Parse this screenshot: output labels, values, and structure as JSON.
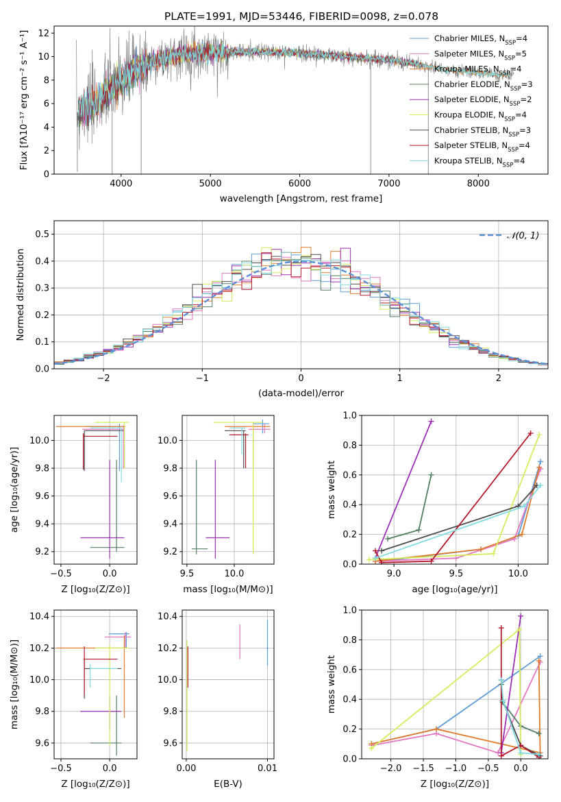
{
  "figure_title": "PLATE=1991, MJD=53446, FIBERID=0098, z=0.078",
  "colors": {
    "chabrier_miles": "#5b9bd5",
    "salpeter_miles": "#e377c2",
    "kroupa_miles": "#e07b2a",
    "chabrier_elodie": "#4f7f5f",
    "salpeter_elodie": "#9b2fb3",
    "kroupa_elodie": "#d4ec5a",
    "chabrier_stelib": "#4a4a4a",
    "salpeter_stelib": "#b2182b",
    "kroupa_stelib": "#7fdbe0",
    "data": "#808080",
    "normal": "#5b8fd6"
  },
  "chart_data": [
    {
      "id": "spectrum",
      "type": "line",
      "title": "PLATE=1991, MJD=53446, FIBERID=0098, z=0.078",
      "xlabel": "wavelength [Angstrom, rest frame]",
      "ylabel": "Flux [fλ10⁻¹⁷ erg cm⁻² s⁻¹ A⁻¹]",
      "xlim": [
        3250,
        8780
      ],
      "ylim": [
        0,
        12.6
      ],
      "xticks": [
        "4000",
        "5000",
        "6000",
        "7000",
        "8000"
      ],
      "yticks": [
        "0",
        "2",
        "4",
        "6",
        "8",
        "10",
        "12"
      ],
      "legend_position": "top-right",
      "legend": [
        {
          "label": "Chabrier MILES, N",
          "sub": "SSP",
          "suffix": "=4",
          "color_key": "chabrier_miles"
        },
        {
          "label": "Salpeter MILES, N",
          "sub": "SSP",
          "suffix": "=5",
          "color_key": "salpeter_miles"
        },
        {
          "label": "Kroupa MILES, N",
          "sub": "SSP",
          "suffix": "=4",
          "color_key": "kroupa_miles"
        },
        {
          "label": "Chabrier ELODIE, N",
          "sub": "SSP",
          "suffix": "=3",
          "color_key": "chabrier_elodie"
        },
        {
          "label": "Salpeter ELODIE, N",
          "sub": "SSP",
          "suffix": "=2",
          "color_key": "salpeter_elodie"
        },
        {
          "label": "Kroupa ELODIE, N",
          "sub": "SSP",
          "suffix": "=4",
          "color_key": "kroupa_elodie"
        },
        {
          "label": "Chabrier STELIB, N",
          "sub": "SSP",
          "suffix": "=3",
          "color_key": "chabrier_stelib"
        },
        {
          "label": "Salpeter STELIB, N",
          "sub": "SSP",
          "suffix": "=4",
          "color_key": "salpeter_stelib"
        },
        {
          "label": "Kroupa STELIB, N",
          "sub": "SSP",
          "suffix": "=4",
          "color_key": "kroupa_stelib"
        }
      ],
      "continuum": [
        [
          3500,
          5.2
        ],
        [
          3700,
          6.0
        ],
        [
          3900,
          7.3
        ],
        [
          4100,
          8.6
        ],
        [
          4300,
          9.4
        ],
        [
          4600,
          10.1
        ],
        [
          5000,
          10.4
        ],
        [
          5500,
          10.4
        ],
        [
          6000,
          10.3
        ],
        [
          6500,
          10.0
        ],
        [
          7000,
          9.7
        ],
        [
          7300,
          9.4
        ],
        [
          7600,
          8.9
        ],
        [
          8000,
          8.6
        ],
        [
          8400,
          8.4
        ]
      ]
    },
    {
      "id": "residuals",
      "type": "histogram",
      "xlabel": "(data-model)/error",
      "ylabel": "Normed distribution",
      "xlim": [
        -2.5,
        2.5
      ],
      "ylim": [
        0,
        0.55
      ],
      "xticks": [
        "−2",
        "−1",
        "0",
        "1",
        "2"
      ],
      "yticks": [
        "0.0",
        "0.1",
        "0.2",
        "0.3",
        "0.4",
        "0.5"
      ],
      "grid": true,
      "legend_position": "top-right",
      "legend": [
        "𝒩(0, 1)"
      ],
      "bin_width": 0.1
    },
    {
      "id": "age_vs_z",
      "type": "errorbar",
      "xlabel": "Z [log₁₀(Z/Z⊙)]",
      "ylabel": "age  [log₁₀(age/yr)]",
      "xlim": [
        -0.57,
        0.28
      ],
      "ylim": [
        9.11,
        10.18
      ],
      "xticks": [
        "−0.5",
        "0.0"
      ],
      "yticks": [
        "9.2",
        "9.4",
        "9.6",
        "9.8",
        "10.0"
      ],
      "grid": true,
      "points": [
        {
          "color_key": "chabrier_miles",
          "x": [
            -0.25,
            0.1
          ],
          "y": [
            9.78,
            10.12
          ]
        },
        {
          "color_key": "salpeter_miles",
          "x": [
            -0.28,
            0.15
          ],
          "y": [
            9.8,
            10.11
          ]
        },
        {
          "color_key": "kroupa_miles",
          "x": [
            -0.55,
            0.16
          ],
          "y": [
            9.8,
            10.1
          ]
        },
        {
          "color_key": "chabrier_elodie",
          "x": [
            -0.25,
            0.16
          ],
          "y": [
            9.2,
            10.08
          ]
        },
        {
          "color_key": "salpeter_elodie",
          "x": [
            -0.3,
            0.15
          ],
          "y": [
            9.15,
            10.12
          ]
        },
        {
          "color_key": "kroupa_elodie",
          "x": [
            -0.15,
            0.2
          ],
          "y": [
            9.3,
            10.13
          ]
        },
        {
          "color_key": "chabrier_stelib",
          "x": [
            -0.26,
            0.14
          ],
          "y": [
            9.78,
            10.07
          ]
        },
        {
          "color_key": "salpeter_stelib",
          "x": [
            -0.27,
            0.08
          ],
          "y": [
            9.79,
            10.05
          ]
        },
        {
          "color_key": "kroupa_stelib",
          "x": [
            -0.2,
            0.12
          ],
          "y": [
            9.7,
            10.09
          ]
        }
      ]
    },
    {
      "id": "age_vs_mass",
      "type": "errorbar",
      "xlabel": "mass [log₁₀(M/M⊙)]",
      "ylabel": "",
      "xlim": [
        9.45,
        10.42
      ],
      "ylim": [
        9.11,
        10.18
      ],
      "xticks": [
        "9.5",
        "10.0"
      ],
      "yticks": [
        "9.2",
        "9.4",
        "9.6",
        "9.8",
        "10.0"
      ],
      "grid": true
    },
    {
      "id": "weight_vs_age",
      "type": "line",
      "xlabel": "age  [log₁₀(age/yr)]",
      "ylabel": "mass weight",
      "xlim": [
        8.74,
        10.24
      ],
      "ylim": [
        0,
        1.0
      ],
      "xticks": [
        "9.0",
        "9.5",
        "10.0"
      ],
      "yticks": [
        "0.0",
        "0.2",
        "0.4",
        "0.6",
        "0.8",
        "1.0"
      ],
      "grid": true,
      "series": [
        {
          "color_key": "chabrier_miles",
          "x": [
            8.9,
            9.7,
            10.0,
            10.18
          ],
          "y": [
            0.02,
            0.1,
            0.19,
            0.69
          ]
        },
        {
          "color_key": "salpeter_miles",
          "x": [
            8.85,
            9.5,
            9.97,
            10.18
          ],
          "y": [
            0.02,
            0.04,
            0.17,
            0.64
          ]
        },
        {
          "color_key": "kroupa_miles",
          "x": [
            8.85,
            9.7,
            10.03,
            10.17
          ],
          "y": [
            0.02,
            0.1,
            0.2,
            0.65
          ]
        },
        {
          "color_key": "chabrier_elodie",
          "x": [
            8.95,
            9.2,
            9.3
          ],
          "y": [
            0.17,
            0.23,
            0.6
          ]
        },
        {
          "color_key": "salpeter_elodie",
          "x": [
            8.85,
            9.3
          ],
          "y": [
            0.04,
            0.96
          ]
        },
        {
          "color_key": "kroupa_elodie",
          "x": [
            8.8,
            9.8,
            10.17
          ],
          "y": [
            0.03,
            0.07,
            0.87
          ]
        },
        {
          "color_key": "chabrier_stelib",
          "x": [
            8.9,
            10.0,
            10.15
          ],
          "y": [
            0.09,
            0.39,
            0.53
          ]
        },
        {
          "color_key": "salpeter_stelib",
          "x": [
            8.85,
            8.9,
            9.3,
            10.1
          ],
          "y": [
            0.09,
            0.01,
            0.02,
            0.88
          ]
        },
        {
          "color_key": "kroupa_stelib",
          "x": [
            8.85,
            10.05,
            10.18
          ],
          "y": [
            0.04,
            0.39,
            0.53
          ]
        }
      ]
    },
    {
      "id": "mass_vs_z",
      "type": "errorbar",
      "xlabel": "Z [log₁₀(Z/Z⊙)]",
      "ylabel": "mass [log₁₀(M/M⊙)]",
      "xlim": [
        -0.57,
        0.28
      ],
      "ylim": [
        9.5,
        10.44
      ],
      "xticks": [
        "−0.5",
        "0.0"
      ],
      "yticks": [
        "9.6",
        "9.8",
        "10.0",
        "10.2",
        "10.4"
      ],
      "grid": true
    },
    {
      "id": "mass_vs_ebv",
      "type": "errorbar",
      "xlabel": "E(B-V)",
      "ylabel": "",
      "xlim": [
        -0.0005,
        0.0108
      ],
      "ylim": [
        9.5,
        10.44
      ],
      "xticks": [
        "0.00",
        "0.01"
      ],
      "yticks": [
        "9.6",
        "9.8",
        "10.0",
        "10.2",
        "10.4"
      ],
      "grid": true
    },
    {
      "id": "weight_vs_z",
      "type": "line",
      "xlabel": "Z [log₁₀(Z/Z⊙)]",
      "ylabel": "mass weight",
      "xlim": [
        -2.45,
        0.42
      ],
      "ylim": [
        0,
        1.0
      ],
      "xticks": [
        "−2.0",
        "−1.5",
        "−1.0",
        "−0.5",
        "0.0"
      ],
      "yticks": [
        "0.0",
        "0.2",
        "0.4",
        "0.6",
        "0.8",
        "1.0"
      ],
      "grid": true,
      "series": [
        {
          "color_key": "chabrier_miles",
          "x": [
            -2.3,
            -1.3,
            0.3
          ],
          "y": [
            0.1,
            0.2,
            0.69
          ]
        },
        {
          "color_key": "salpeter_miles",
          "x": [
            -2.3,
            -1.3,
            -0.35,
            0.3
          ],
          "y": [
            0.09,
            0.17,
            0.04,
            0.65
          ]
        },
        {
          "color_key": "kroupa_miles",
          "x": [
            -2.3,
            -1.3,
            0.3,
            0.28
          ],
          "y": [
            0.1,
            0.2,
            0.04,
            0.66
          ]
        },
        {
          "color_key": "chabrier_elodie",
          "x": [
            -0.3,
            -0.28,
            0.0,
            0.28
          ],
          "y": [
            0.5,
            0.38,
            0.22,
            0.17
          ]
        },
        {
          "color_key": "salpeter_elodie",
          "x": [
            -0.3,
            0.0
          ],
          "y": [
            0.04,
            0.96
          ]
        },
        {
          "color_key": "kroupa_elodie",
          "x": [
            -2.3,
            -0.02,
            0.0
          ],
          "y": [
            0.07,
            0.87,
            0.03
          ]
        },
        {
          "color_key": "chabrier_stelib",
          "x": [
            -0.3,
            -0.28,
            0.0,
            0.3
          ],
          "y": [
            0.53,
            0.39,
            0.09,
            0.02
          ]
        },
        {
          "color_key": "salpeter_stelib",
          "x": [
            -0.3,
            -0.3,
            0.0,
            0.28
          ],
          "y": [
            0.88,
            0.02,
            0.09,
            0.01
          ]
        },
        {
          "color_key": "kroupa_stelib",
          "x": [
            -0.3,
            -0.27,
            0.0,
            0.28
          ],
          "y": [
            0.53,
            0.39,
            0.04,
            0.03
          ]
        }
      ]
    }
  ]
}
